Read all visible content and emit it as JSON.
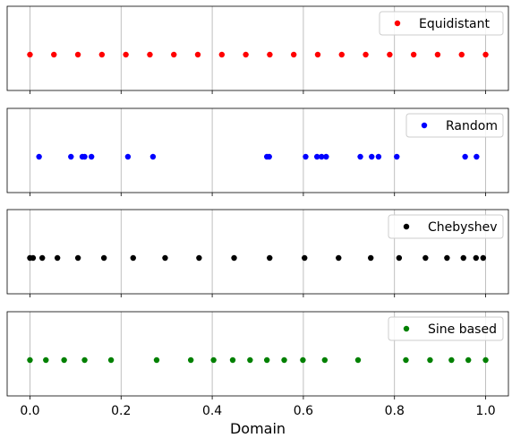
{
  "chart_data": {
    "type": "scatter",
    "xlabel": "Domain",
    "xlim": [
      -0.05,
      1.05
    ],
    "xticks": [
      0.0,
      0.2,
      0.4,
      0.6,
      0.8,
      1.0
    ],
    "xtick_labels": [
      "0.0",
      "0.2",
      "0.4",
      "0.6",
      "0.8",
      "1.0"
    ],
    "grid": "vertical",
    "legend_position": "top-right",
    "series": [
      {
        "name": "Equidistant",
        "color": "#ff0000",
        "x": [
          0.0,
          0.0526,
          0.1053,
          0.1579,
          0.2105,
          0.2632,
          0.3158,
          0.3684,
          0.4211,
          0.4737,
          0.5263,
          0.5789,
          0.6316,
          0.6842,
          0.7368,
          0.7895,
          0.8421,
          0.8947,
          0.9474,
          1.0
        ]
      },
      {
        "name": "Random",
        "color": "#0000ff",
        "x": [
          0.02,
          0.09,
          0.115,
          0.12,
          0.135,
          0.215,
          0.27,
          0.52,
          0.525,
          0.605,
          0.63,
          0.64,
          0.65,
          0.725,
          0.75,
          0.765,
          0.805,
          0.955,
          0.98
        ]
      },
      {
        "name": "Chebyshev",
        "color": "#000000",
        "x": [
          0.0,
          0.0068,
          0.027,
          0.0603,
          0.1054,
          0.1624,
          0.2265,
          0.2966,
          0.3711,
          0.448,
          0.526,
          0.6026,
          0.6773,
          0.7479,
          0.8101,
          0.868,
          0.9152,
          0.9513,
          0.9789,
          0.9946
        ]
      },
      {
        "name": "Sine based",
        "color": "#008000",
        "x": [
          0.0,
          0.035,
          0.075,
          0.12,
          0.178,
          0.278,
          0.353,
          0.403,
          0.445,
          0.483,
          0.52,
          0.558,
          0.599,
          0.647,
          0.72,
          0.825,
          0.878,
          0.925,
          0.962,
          1.0
        ]
      }
    ]
  }
}
